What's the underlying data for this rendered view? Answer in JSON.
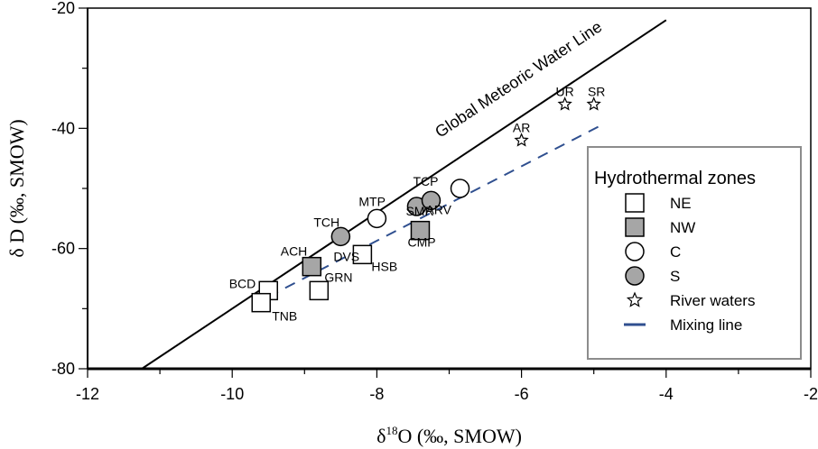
{
  "chart_data": {
    "type": "scatter",
    "xlabel": "δ18O (‰, SMOW)",
    "xlabel_parts": {
      "pre": "δ",
      "sup": "18",
      "post": "O  (‰, SMOW)"
    },
    "ylabel": "δ D  (‰, SMOW)",
    "xlim": [
      -12,
      -2
    ],
    "ylim": [
      -80,
      -20
    ],
    "xticks": [
      -12,
      -10,
      -8,
      -6,
      -4,
      -2
    ],
    "yticks": [
      -80,
      -60,
      -40,
      -20
    ],
    "xtick_labels": [
      "-12",
      "-10",
      "-8",
      "-6",
      "-4",
      "-2"
    ],
    "ytick_labels": [
      "-80",
      "-60",
      "-40",
      "-20"
    ],
    "grid": false,
    "legend_position": "right",
    "legend_title": "Hydrothermal zones",
    "colors": {
      "gray_fill": "#a6a6a6",
      "white_fill": "#ffffff",
      "mixing_line": "#2f4f8f",
      "line": "#000000"
    },
    "series": [
      {
        "name": "NE",
        "marker": "square-open",
        "points": [
          {
            "x": -9.5,
            "y": -67,
            "label": "BCD"
          },
          {
            "x": -9.6,
            "y": -69,
            "label": "TNB"
          },
          {
            "x": -8.8,
            "y": -67,
            "label": "GRN"
          },
          {
            "x": -8.2,
            "y": -61,
            "label": "HSB"
          }
        ]
      },
      {
        "name": "NW",
        "marker": "square-filled",
        "points": [
          {
            "x": -8.9,
            "y": -63,
            "label": "ACH"
          },
          {
            "x": -7.4,
            "y": -57,
            "label": "CMP"
          }
        ]
      },
      {
        "name": "C",
        "marker": "circle-open",
        "points": [
          {
            "x": -8.0,
            "y": -55,
            "label": "MTP"
          },
          {
            "x": -6.85,
            "y": -50,
            "label": "TCP"
          }
        ]
      },
      {
        "name": "S",
        "marker": "circle-filled",
        "points": [
          {
            "x": -8.5,
            "y": -58,
            "label": "TCH"
          },
          {
            "x": -7.45,
            "y": -53,
            "label": "SMR"
          },
          {
            "x": -7.25,
            "y": -52,
            "label": "ARV"
          }
        ]
      },
      {
        "name": "River waters",
        "marker": "star",
        "points": [
          {
            "x": -6.0,
            "y": -42,
            "label": "AR"
          },
          {
            "x": -5.4,
            "y": -36,
            "label": "UR"
          },
          {
            "x": -5.0,
            "y": -36,
            "label": "SR"
          }
        ]
      }
    ],
    "extra_labels": [
      {
        "text": "DVS",
        "x": -8.6,
        "y": -61.3
      }
    ],
    "lines": [
      {
        "name": "Global Meteoric Water Line",
        "style": "solid",
        "x": [
          -11.25,
          -4.0
        ],
        "y": [
          -80,
          -22
        ]
      },
      {
        "name": "Mixing line",
        "style": "dashed",
        "x": [
          -9.5,
          -4.9
        ],
        "y": [
          -68,
          -39.5
        ]
      }
    ]
  }
}
